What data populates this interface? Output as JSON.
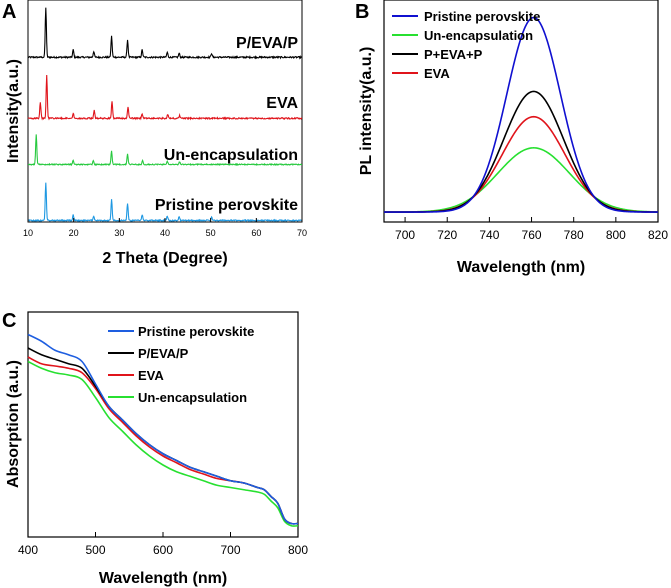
{
  "panels": {
    "a": "A",
    "b": "B",
    "c": "C"
  },
  "chart_data": [
    {
      "type": "line",
      "panel": "A",
      "title": "",
      "xlabel": "2 Theta (Degree)",
      "ylabel": "Intensity(a.u.)",
      "xlim": [
        10,
        70
      ],
      "xticks": [
        10,
        20,
        30,
        40,
        50,
        60,
        70
      ],
      "series": [
        {
          "name": "P/EVA/P",
          "color": "#000000",
          "peaks": [
            [
              13.9,
              1.0
            ],
            [
              19.9,
              0.15
            ],
            [
              24.4,
              0.12
            ],
            [
              28.3,
              0.42
            ],
            [
              31.8,
              0.35
            ],
            [
              35.0,
              0.15
            ],
            [
              40.5,
              0.1
            ],
            [
              43.1,
              0.08
            ],
            [
              50.2,
              0.08
            ]
          ]
        },
        {
          "name": "EVA",
          "color": "#e0141b",
          "peaks": [
            [
              12.7,
              0.35
            ],
            [
              14.1,
              0.95
            ],
            [
              19.9,
              0.12
            ],
            [
              24.5,
              0.18
            ],
            [
              28.4,
              0.38
            ],
            [
              31.9,
              0.25
            ],
            [
              35.0,
              0.1
            ],
            [
              40.6,
              0.08
            ],
            [
              43.2,
              0.06
            ]
          ]
        },
        {
          "name": "Un-encapsulation",
          "color": "#27c93f",
          "peaks": [
            [
              11.8,
              0.85
            ],
            [
              19.9,
              0.12
            ],
            [
              24.3,
              0.1
            ],
            [
              28.3,
              0.38
            ],
            [
              31.8,
              0.3
            ],
            [
              35.1,
              0.12
            ],
            [
              40.5,
              0.1
            ],
            [
              43.2,
              0.08
            ]
          ]
        },
        {
          "name": "Pristine perovskite",
          "color": "#1e98e2",
          "peaks": [
            [
              13.9,
              1.0
            ],
            [
              19.9,
              0.15
            ],
            [
              24.4,
              0.12
            ],
            [
              28.3,
              0.55
            ],
            [
              31.8,
              0.45
            ],
            [
              35.0,
              0.15
            ],
            [
              40.5,
              0.12
            ],
            [
              43.1,
              0.1
            ],
            [
              50.2,
              0.08
            ]
          ]
        }
      ]
    },
    {
      "type": "line",
      "panel": "B",
      "title": "",
      "xlabel": "Wavelength (nm)",
      "ylabel": "PL intensity(a.u.)",
      "xlim": [
        690,
        820
      ],
      "xticks": [
        700,
        720,
        740,
        760,
        780,
        800,
        820
      ],
      "ylim": [
        0,
        1.1
      ],
      "series": [
        {
          "name": "Pristine perovskite",
          "color": "#1010d0",
          "peak_x": 761,
          "peak_y": 1.0,
          "sigma": 18
        },
        {
          "name": "Un-encapsulation",
          "color": "#27e030",
          "peak_x": 761,
          "peak_y": 0.33,
          "sigma": 24
        },
        {
          "name": "P+EVA+P",
          "color": "#000000",
          "peak_x": 761,
          "peak_y": 0.62,
          "sigma": 20
        },
        {
          "name": "EVA",
          "color": "#e0141b",
          "peak_x": 761,
          "peak_y": 0.49,
          "sigma": 21
        }
      ]
    },
    {
      "type": "line",
      "panel": "C",
      "title": "",
      "xlabel": "Wavelength (nm)",
      "ylabel": "Absorption (a.u.)",
      "xlim": [
        400,
        800
      ],
      "xticks": [
        400,
        500,
        600,
        700,
        800
      ],
      "ylim": [
        0,
        1.0
      ],
      "series": [
        {
          "name": "Pristine perovskite",
          "color": "#1e5ee0",
          "x": [
            400,
            420,
            440,
            460,
            480,
            500,
            520,
            540,
            560,
            580,
            600,
            620,
            640,
            660,
            680,
            700,
            720,
            740,
            750,
            760,
            770,
            780,
            790,
            800
          ],
          "y": [
            0.9,
            0.87,
            0.83,
            0.81,
            0.78,
            0.68,
            0.58,
            0.52,
            0.46,
            0.41,
            0.37,
            0.34,
            0.31,
            0.29,
            0.27,
            0.25,
            0.24,
            0.22,
            0.21,
            0.18,
            0.15,
            0.08,
            0.06,
            0.06
          ]
        },
        {
          "name": "P/EVA/P",
          "color": "#000000",
          "x": [
            400,
            420,
            440,
            460,
            480,
            500,
            520,
            540,
            560,
            580,
            600,
            620,
            640,
            660,
            680,
            700,
            720,
            740,
            750,
            760,
            770,
            780,
            790,
            800
          ],
          "y": [
            0.84,
            0.81,
            0.79,
            0.77,
            0.75,
            0.67,
            0.58,
            0.52,
            0.46,
            0.41,
            0.37,
            0.34,
            0.31,
            0.29,
            0.27,
            0.25,
            0.24,
            0.22,
            0.21,
            0.18,
            0.15,
            0.08,
            0.06,
            0.06
          ]
        },
        {
          "name": "EVA",
          "color": "#e0141b",
          "x": [
            400,
            420,
            440,
            460,
            480,
            500,
            520,
            540,
            560,
            580,
            600,
            620,
            640,
            660,
            680,
            700,
            720,
            740,
            750,
            760,
            770,
            780,
            790,
            800
          ],
          "y": [
            0.8,
            0.77,
            0.76,
            0.75,
            0.73,
            0.66,
            0.57,
            0.51,
            0.45,
            0.4,
            0.36,
            0.33,
            0.3,
            0.28,
            0.26,
            0.25,
            0.24,
            0.22,
            0.21,
            0.18,
            0.15,
            0.08,
            0.06,
            0.06
          ]
        },
        {
          "name": "Un-encapsulation",
          "color": "#27e030",
          "x": [
            400,
            420,
            440,
            460,
            480,
            500,
            520,
            540,
            560,
            580,
            600,
            620,
            640,
            660,
            680,
            700,
            720,
            740,
            750,
            760,
            770,
            780,
            790,
            800
          ],
          "y": [
            0.78,
            0.75,
            0.73,
            0.72,
            0.7,
            0.62,
            0.53,
            0.47,
            0.41,
            0.36,
            0.32,
            0.29,
            0.27,
            0.25,
            0.23,
            0.22,
            0.21,
            0.2,
            0.19,
            0.16,
            0.13,
            0.07,
            0.05,
            0.05
          ]
        }
      ]
    }
  ]
}
